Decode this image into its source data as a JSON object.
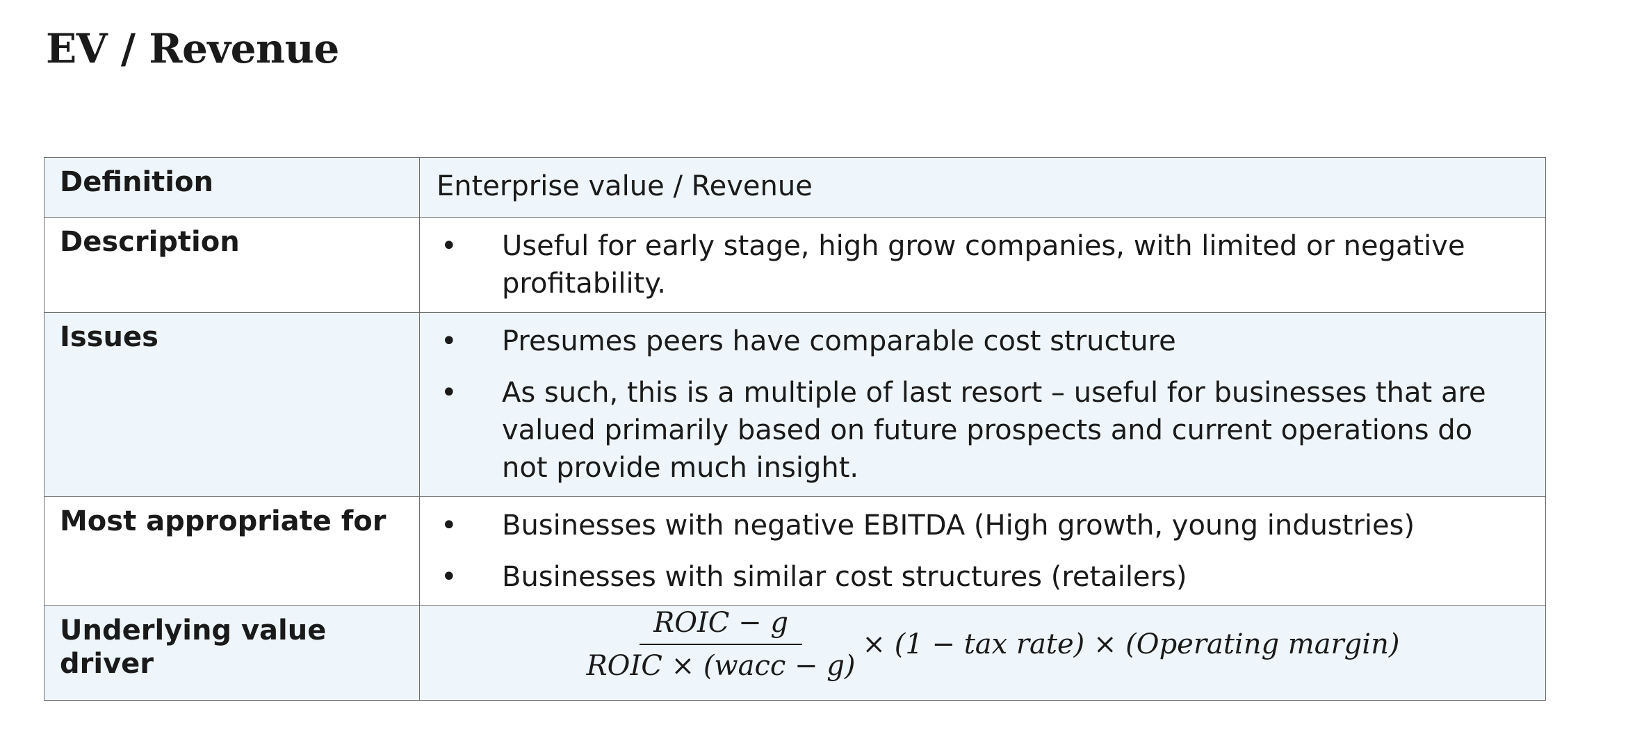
{
  "page": {
    "title": "EV / Revenue"
  },
  "table": {
    "rows": [
      {
        "label": "Definition",
        "text": "Enterprise value / Revenue"
      },
      {
        "label": "Description",
        "bullets": [
          "Useful for early stage, high grow companies, with limited or negative profitability."
        ]
      },
      {
        "label": "Issues",
        "bullets": [
          "Presumes peers have comparable cost structure",
          "As such, this is a multiple of last resort – useful for businesses that are valued primarily based on future prospects and current operations do not provide much insight."
        ]
      },
      {
        "label": "Most appropriate for",
        "bullets": [
          "Businesses with negative EBITDA (High growth, young industries)",
          "Businesses with similar cost structures (retailers)"
        ]
      },
      {
        "label": "Underlying value driver",
        "formula": {
          "numerator": "ROIC − g",
          "denominator": "ROIC × (wacc − g)",
          "rest": "× (1 − tax rate) × (Operating margin)"
        }
      }
    ],
    "bullet_symbol": "•",
    "colors": {
      "shaded_row": "#eef6fb",
      "border": "#6e6e6e",
      "text": "#1a1a1a"
    }
  }
}
